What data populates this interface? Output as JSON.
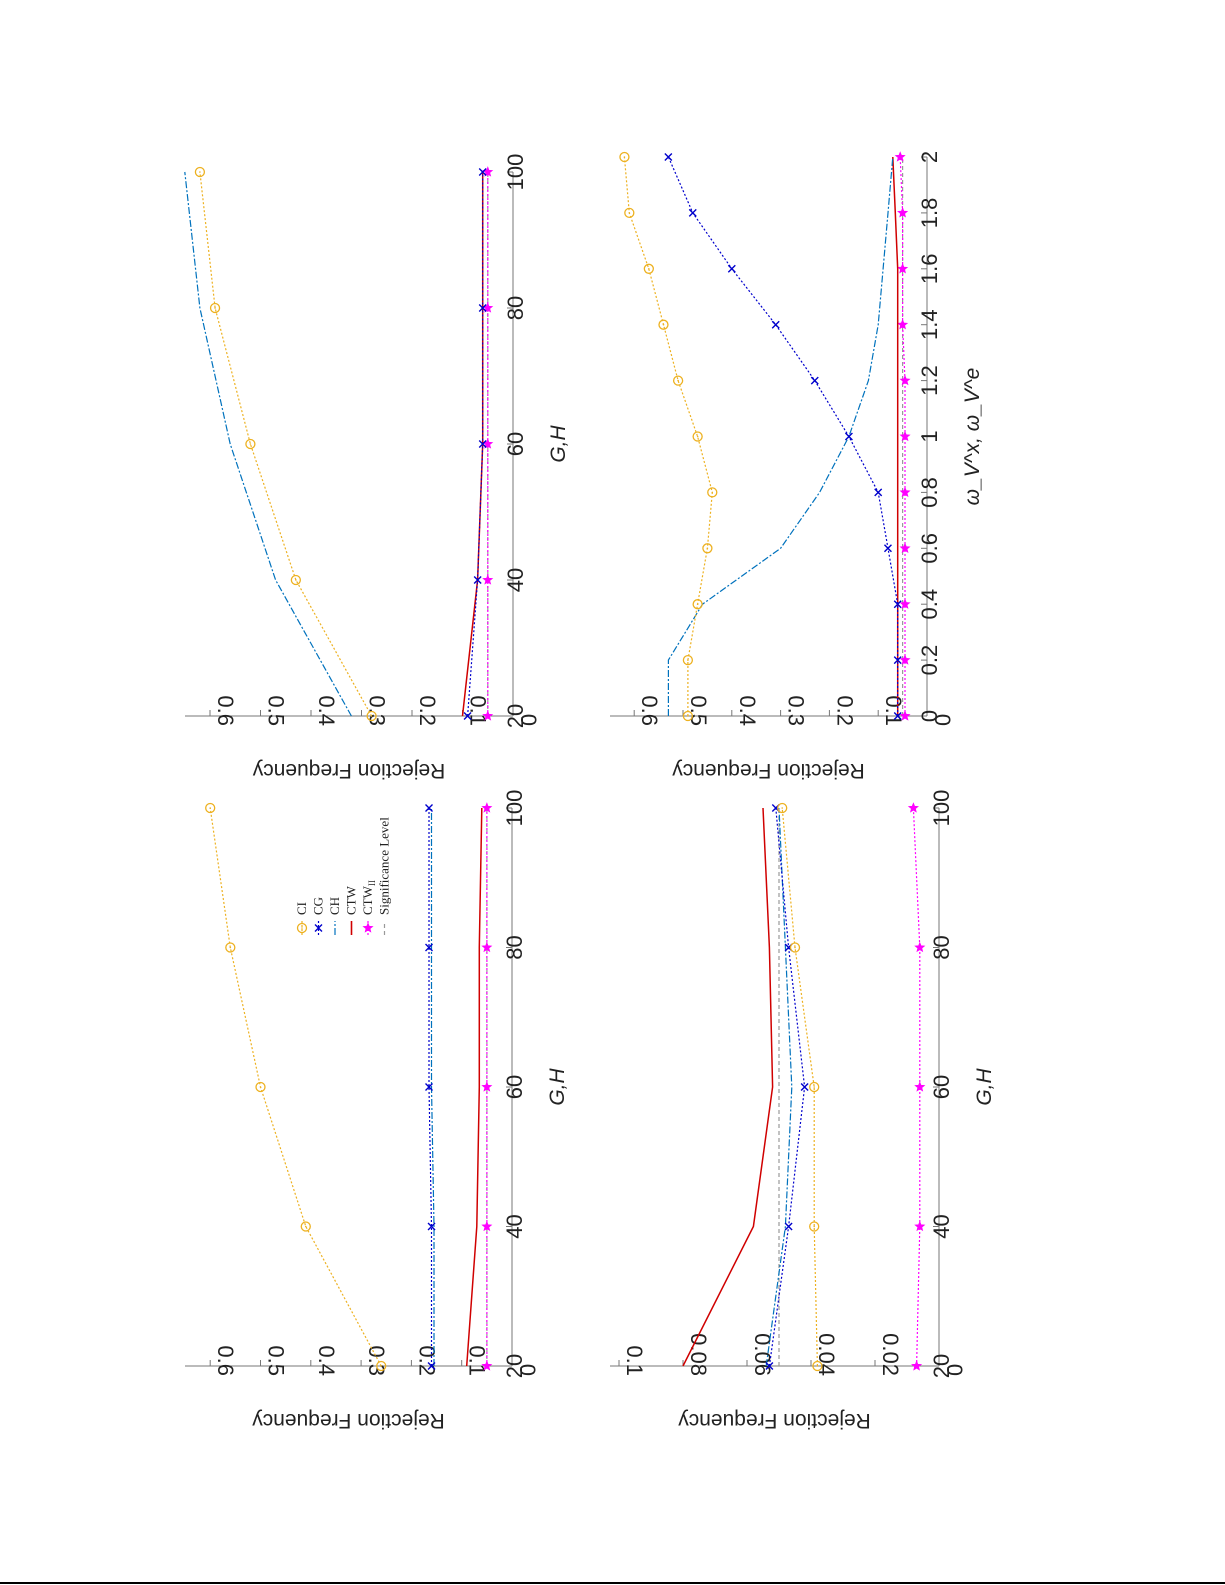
{
  "figure": {
    "orientation": "rotated 90 degrees clockwise on page",
    "legend": {
      "entries": [
        {
          "key": "CI",
          "label": "CI",
          "color": "#EDB120",
          "marker": "o",
          "dash": "2,2"
        },
        {
          "key": "CG",
          "label": "CG",
          "color": "#0000CC",
          "marker": "x",
          "dash": "2,2"
        },
        {
          "key": "CH",
          "label": "CH",
          "color": "#0072BD",
          "marker": "",
          "dash": "7,2,2,2"
        },
        {
          "key": "CTW",
          "label": "CTW",
          "color": "#D00000",
          "marker": "",
          "dash": ""
        },
        {
          "key": "CTWII",
          "label": "CTW",
          "sub": "II",
          "color": "#FF00FF",
          "marker": "star",
          "dash": "2,2"
        },
        {
          "key": "SIG",
          "label": "Significance Level",
          "color": "#999999",
          "marker": "",
          "dash": "4,3"
        }
      ]
    }
  },
  "chart_data": [
    {
      "id": "panel-1",
      "type": "line",
      "position": "top-left of rotated figure (page bottom-left)",
      "xlabel": "G,H",
      "ylabel": "Rejection Frequency",
      "x": [
        20,
        40,
        60,
        80,
        100
      ],
      "xlim": [
        20,
        100
      ],
      "ylim": [
        0,
        0.65
      ],
      "xticks": [
        "20",
        "40",
        "60",
        "80",
        "100"
      ],
      "yticks": [
        "0",
        "0.1",
        "0.2",
        "0.3",
        "0.4",
        "0.5",
        "0.6"
      ],
      "legend": true,
      "series": [
        {
          "name": "CI",
          "values": [
            0.26,
            0.41,
            0.5,
            0.56,
            0.6
          ]
        },
        {
          "name": "CG",
          "values": [
            0.16,
            0.16,
            0.165,
            0.165,
            0.165
          ]
        },
        {
          "name": "CH",
          "values": [
            0.155,
            0.155,
            0.16,
            0.16,
            0.16
          ]
        },
        {
          "name": "CTW",
          "values": [
            0.09,
            0.07,
            0.065,
            0.065,
            0.06
          ]
        },
        {
          "name": "CTW_II",
          "values": [
            0.05,
            0.05,
            0.05,
            0.05,
            0.05
          ]
        },
        {
          "name": "Significance Level",
          "values": [
            0.05,
            0.05,
            0.05,
            0.05,
            0.05
          ]
        }
      ]
    },
    {
      "id": "panel-2",
      "type": "line",
      "position": "top-right of rotated figure (page bottom-right)",
      "xlabel": "G,H",
      "ylabel": "Rejection Frequency",
      "x": [
        20,
        40,
        60,
        80,
        100
      ],
      "xlim": [
        20,
        100
      ],
      "ylim": [
        0,
        0.1
      ],
      "xticks": [
        "20",
        "40",
        "60",
        "80",
        "100"
      ],
      "yticks": [
        "0",
        "0.02",
        "0.04",
        "0.06",
        "0.08",
        "0.1"
      ],
      "legend": false,
      "series": [
        {
          "name": "CI",
          "values": [
            0.038,
            0.039,
            0.039,
            0.045,
            0.049
          ]
        },
        {
          "name": "CG",
          "values": [
            0.053,
            0.047,
            0.042,
            0.047,
            0.051
          ]
        },
        {
          "name": "CH",
          "values": [
            0.054,
            0.048,
            0.046,
            0.048,
            0.05
          ]
        },
        {
          "name": "CTW",
          "values": [
            0.08,
            0.058,
            0.052,
            0.053,
            0.055
          ]
        },
        {
          "name": "CTW_II",
          "values": [
            0.007,
            0.006,
            0.006,
            0.006,
            0.008
          ]
        },
        {
          "name": "Significance Level",
          "values": [
            0.05,
            0.05,
            0.05,
            0.05,
            0.05
          ]
        }
      ]
    },
    {
      "id": "panel-3",
      "type": "line",
      "position": "bottom-left of rotated figure (page top-left)",
      "xlabel": "G,H",
      "ylabel": "Rejection Frequency",
      "x": [
        20,
        40,
        60,
        80,
        100
      ],
      "xlim": [
        20,
        100
      ],
      "ylim": [
        0,
        0.65
      ],
      "xticks": [
        "20",
        "40",
        "60",
        "80",
        "100"
      ],
      "yticks": [
        "0",
        "0.1",
        "0.2",
        "0.3",
        "0.4",
        "0.5",
        "0.6"
      ],
      "legend": false,
      "series": [
        {
          "name": "CI",
          "values": [
            0.28,
            0.43,
            0.52,
            0.59,
            0.62
          ]
        },
        {
          "name": "CG",
          "values": [
            0.09,
            0.07,
            0.06,
            0.06,
            0.06
          ]
        },
        {
          "name": "CH",
          "values": [
            0.32,
            0.47,
            0.56,
            0.62,
            0.65
          ]
        },
        {
          "name": "CTW",
          "values": [
            0.1,
            0.07,
            0.06,
            0.06,
            0.06
          ]
        },
        {
          "name": "CTW_II",
          "values": [
            0.05,
            0.05,
            0.05,
            0.05,
            0.05
          ]
        },
        {
          "name": "Significance Level",
          "values": [
            0.05,
            0.05,
            0.05,
            0.05,
            0.05
          ]
        }
      ]
    },
    {
      "id": "panel-4",
      "type": "line",
      "position": "bottom-right of rotated figure (page top-right)",
      "xlabel": "ω_V^x, ω_V^e",
      "ylabel": "Rejection Frequency",
      "x": [
        0,
        0.2,
        0.4,
        0.6,
        0.8,
        1.0,
        1.2,
        1.4,
        1.6,
        1.8,
        2.0
      ],
      "xlim": [
        0,
        2
      ],
      "ylim": [
        0,
        0.65
      ],
      "xticks": [
        "0",
        "0.2",
        "0.4",
        "0.6",
        "0.8",
        "1",
        "1.2",
        "1.4",
        "1.6",
        "1.8",
        "2"
      ],
      "yticks": [
        "0",
        "0.1",
        "0.2",
        "0.3",
        "0.4",
        "0.5",
        "0.6"
      ],
      "legend": false,
      "series": [
        {
          "name": "CI",
          "values": [
            0.49,
            0.49,
            0.47,
            0.45,
            0.44,
            0.47,
            0.51,
            0.54,
            0.57,
            0.61,
            0.62
          ]
        },
        {
          "name": "CG",
          "values": [
            0.06,
            0.06,
            0.06,
            0.08,
            0.1,
            0.16,
            0.23,
            0.31,
            0.4,
            0.48,
            0.53
          ]
        },
        {
          "name": "CH",
          "values": [
            0.53,
            0.53,
            0.46,
            0.3,
            0.22,
            0.16,
            0.12,
            0.1,
            0.09,
            0.08,
            0.07
          ]
        },
        {
          "name": "CTW",
          "values": [
            0.06,
            0.06,
            0.06,
            0.06,
            0.06,
            0.06,
            0.06,
            0.06,
            0.06,
            0.065,
            0.07
          ]
        },
        {
          "name": "CTW_II",
          "values": [
            0.045,
            0.045,
            0.045,
            0.045,
            0.045,
            0.045,
            0.045,
            0.05,
            0.05,
            0.05,
            0.055
          ]
        },
        {
          "name": "Significance Level",
          "values": [
            0.05,
            0.05,
            0.05,
            0.05,
            0.05,
            0.05,
            0.05,
            0.05,
            0.05,
            0.05,
            0.05
          ]
        }
      ]
    }
  ]
}
